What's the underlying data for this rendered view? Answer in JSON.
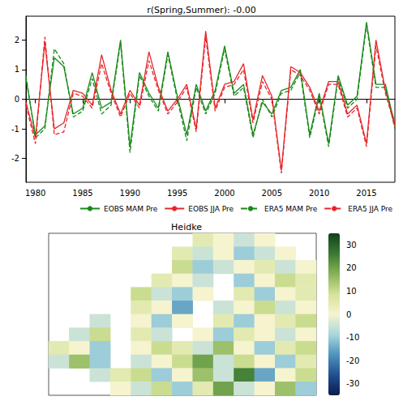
{
  "chart_data": [
    {
      "type": "line",
      "title": "r(Spring,Summer): -0.00",
      "x": [
        1979,
        1980,
        1981,
        1982,
        1983,
        1984,
        1985,
        1986,
        1987,
        1988,
        1989,
        1990,
        1991,
        1992,
        1993,
        1994,
        1995,
        1996,
        1997,
        1998,
        1999,
        2000,
        2001,
        2002,
        2003,
        2004,
        2005,
        2006,
        2007,
        2008,
        2009,
        2010,
        2011,
        2012,
        2013,
        2014,
        2015,
        2016,
        2017,
        2018
      ],
      "xlim": [
        1979,
        2018
      ],
      "xticks": [
        1980,
        1985,
        1990,
        1995,
        2000,
        2005,
        2010,
        2015
      ],
      "ylim": [
        -2.8,
        2.8
      ],
      "yticks": [
        -2,
        -1,
        0,
        1,
        2
      ],
      "grid": false,
      "legend": "lower right",
      "series": [
        {
          "name": "EOBS MAM Pre",
          "color": "#1a8a1a",
          "marker": "none",
          "line_style": "solid",
          "values": [
            0.7,
            -1.2,
            -0.9,
            1.4,
            1.1,
            -0.5,
            -0.3,
            0.9,
            -0.3,
            -0.1,
            2.0,
            -1.6,
            0.9,
            0.2,
            -0.3,
            1.6,
            0.1,
            -1.2,
            0.5,
            -0.4,
            0.3,
            1.8,
            0.2,
            0.5,
            -1.2,
            -0.1,
            -0.5,
            0.3,
            0.4,
            1.0,
            -1.2,
            0.2,
            -1.5,
            0.8,
            -0.2,
            0.1,
            2.6,
            0.5,
            0.5,
            -0.9
          ]
        },
        {
          "name": "EOBS JJA Pre",
          "color": "#e8262a",
          "marker": "none",
          "line_style": "solid",
          "values": [
            -0.1,
            -1.3,
            1.9,
            -1.0,
            -0.8,
            0.3,
            0.2,
            -0.2,
            1.5,
            0.3,
            -0.5,
            0.3,
            -0.2,
            1.6,
            0.4,
            -0.4,
            0.0,
            0.5,
            -1.0,
            2.3,
            -0.3,
            0.5,
            0.6,
            1.2,
            -0.7,
            0.8,
            0.1,
            -2.4,
            1.1,
            0.9,
            0.4,
            -0.4,
            0.6,
            0.6,
            -0.5,
            -0.2,
            -1.5,
            2.0,
            0.3,
            -0.8
          ]
        },
        {
          "name": "ERA5 MAM Pre",
          "color": "#1a8a1a",
          "marker": "none",
          "line_style": "dashed",
          "values": [
            0.8,
            -1.3,
            -1.0,
            1.7,
            1.2,
            -0.6,
            -0.4,
            0.7,
            -0.5,
            -0.2,
            1.9,
            -1.8,
            0.8,
            0.1,
            -0.4,
            1.5,
            0.0,
            -1.4,
            0.4,
            -0.5,
            0.2,
            1.7,
            0.1,
            0.4,
            -1.3,
            0.0,
            -0.6,
            0.2,
            0.3,
            0.9,
            -1.3,
            0.1,
            -1.6,
            0.7,
            -0.3,
            0.0,
            2.5,
            0.4,
            0.4,
            -1.0
          ]
        },
        {
          "name": "ERA5 JJA Pre",
          "color": "#e8262a",
          "marker": "none",
          "line_style": "dashed",
          "values": [
            -0.2,
            -1.5,
            2.1,
            -1.2,
            -1.1,
            0.2,
            0.1,
            -0.3,
            1.2,
            0.2,
            -0.6,
            0.2,
            -0.3,
            1.3,
            0.3,
            -0.5,
            -0.1,
            0.4,
            -1.1,
            2.1,
            -0.4,
            0.4,
            0.5,
            1.0,
            -0.8,
            0.6,
            0.0,
            -2.5,
            1.0,
            0.8,
            0.3,
            -0.5,
            0.5,
            0.5,
            -0.6,
            -0.3,
            -1.6,
            1.8,
            0.2,
            -0.9
          ]
        }
      ]
    },
    {
      "type": "heatmap",
      "title": "Heidke",
      "tick_labels": false,
      "x": [
        -10,
        -6,
        -2,
        2,
        6,
        10,
        14,
        18,
        22,
        26,
        30,
        34,
        38
      ],
      "y": [
        70,
        68,
        66,
        64,
        62,
        60,
        58,
        56,
        54,
        52,
        50,
        48
      ],
      "cells": [
        [
          null,
          null,
          null,
          null,
          null,
          null,
          null,
          5,
          0,
          -5,
          0,
          null,
          null
        ],
        [
          null,
          null,
          null,
          null,
          null,
          null,
          5,
          -5,
          0,
          -10,
          -5,
          0,
          null
        ],
        [
          null,
          null,
          null,
          null,
          null,
          null,
          10,
          -10,
          -5,
          0,
          5,
          -5,
          0
        ],
        [
          null,
          null,
          null,
          null,
          null,
          5,
          0,
          -5,
          null,
          -10,
          0,
          10,
          5
        ],
        [
          null,
          null,
          null,
          null,
          10,
          -5,
          -10,
          0,
          null,
          5,
          -10,
          0,
          5
        ],
        [
          null,
          null,
          null,
          null,
          5,
          0,
          -15,
          null,
          -5,
          0,
          10,
          -5,
          0
        ],
        [
          null,
          null,
          -5,
          null,
          0,
          -10,
          0,
          null,
          5,
          -10,
          0,
          5,
          10
        ],
        [
          null,
          -5,
          10,
          null,
          5,
          -5,
          null,
          0,
          -10,
          5,
          0,
          -5,
          0
        ],
        [
          5,
          0,
          -10,
          null,
          0,
          10,
          5,
          -5,
          15,
          0,
          -10,
          5,
          10
        ],
        [
          -5,
          15,
          -10,
          null,
          -5,
          0,
          10,
          20,
          -5,
          10,
          0,
          -10,
          5
        ],
        [
          null,
          null,
          -5,
          5,
          10,
          -10,
          0,
          15,
          -5,
          25,
          -15,
          0,
          10
        ],
        [
          null,
          null,
          null,
          0,
          -5,
          10,
          -10,
          5,
          20,
          -5,
          0,
          15,
          -10
        ]
      ],
      "colorbar": {
        "range": [
          -35,
          35
        ],
        "ticks": [
          -30,
          -20,
          -10,
          0,
          10,
          20,
          30
        ]
      }
    }
  ]
}
